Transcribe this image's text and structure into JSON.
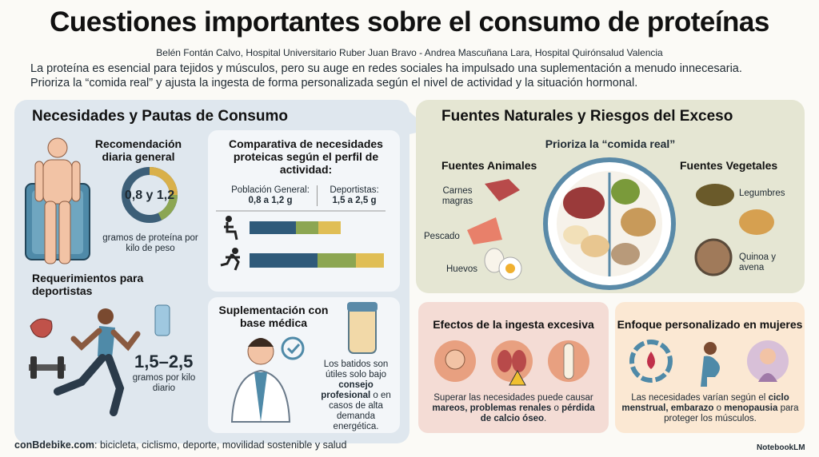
{
  "header": {
    "title": "Cuestiones importantes sobre el consumo de proteínas",
    "authors": "Belén Fontán Calvo, Hospital Universitario Ruber Juan Bravo - Andrea Mascuñana Lara, Hospital Quirónsalud Valencia",
    "intro": [
      "La proteína es esencial para tejidos y músculos, pero su auge en redes sociales ha impulsado una suplementación a menudo innecesaria.",
      "Prioriza la “comida real” y ajusta la ingesta de forma personalizada según el nivel de actividad y la situación hormonal."
    ]
  },
  "left_panel": {
    "title": "Necesidades y Pautas de Consumo",
    "daily": {
      "title": "Recomendación diaria general",
      "value": "0,8 y 1,2",
      "caption": "gramos de proteína por kilo de peso"
    },
    "athletes": {
      "title": "Requerimientos para deportistas",
      "value": "1,5–2,5",
      "caption": "gramos por kilo diario"
    },
    "comparison": {
      "title": "Comparativa de necesidades proteicas según el perfil de actividad:",
      "columns": [
        {
          "label": "Población General:",
          "range": "0,8 a 1,2 g"
        },
        {
          "label": "Deportistas:",
          "range": "1,5 a 2,5 g"
        }
      ]
    },
    "supplement": {
      "title": "Suplementación con base médica",
      "text_1": "Los batidos son útiles solo bajo",
      "bold": "consejo profesional",
      "text_2": "o en casos de alta demanda energética."
    }
  },
  "right_panel": {
    "title": "Fuentes Naturales y Riesgos del Exceso",
    "subtitle": "Prioriza la “comida real”",
    "animal": {
      "title": "Fuentes Animales",
      "items": [
        "Carnes magras",
        "Pescado",
        "Huevos"
      ]
    },
    "vegetal": {
      "title": "Fuentes Vegetales",
      "items": [
        "Legumbres",
        "Quinoa y avena"
      ]
    },
    "excess": {
      "title": "Efectos de la ingesta excesiva",
      "text_1": "Superar las necesidades puede causar",
      "bold_1": "mareos, problemas renales",
      "text_2": "o",
      "bold_2": "pérdida de calcio óseo",
      "text_3": "."
    },
    "women": {
      "title": "Enfoque personalizado en mujeres",
      "text_1": "Las necesidades varían según el",
      "bold_1": "ciclo menstrual, embarazo",
      "text_2": "o",
      "bold_2": "menopausia",
      "text_3": "para proteger los músculos."
    }
  },
  "footer": {
    "source": "conBdebike.com",
    "text": ": bicicleta, ciclismo, deporte, movilidad sostenible y salud",
    "brand": "NotebookLM"
  }
}
